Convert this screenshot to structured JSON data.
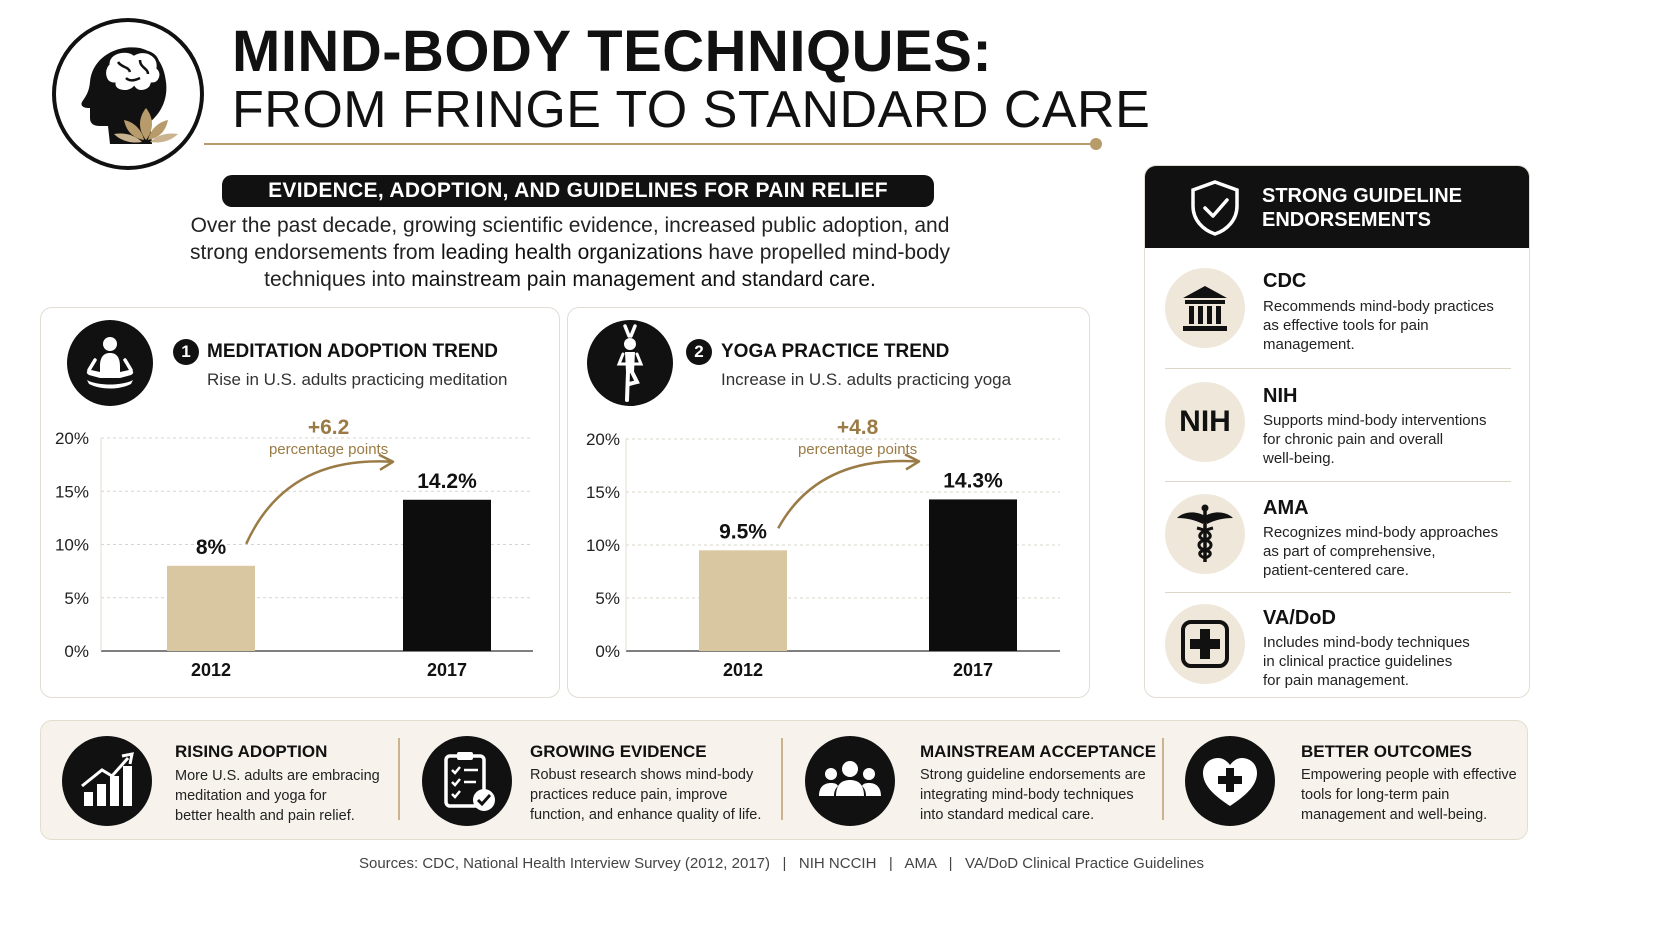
{
  "header": {
    "title_line1": "MIND-BODY TECHNIQUES:",
    "title_line2": "FROM FRINGE TO STANDARD CARE",
    "subtitle": "EVIDENCE, ADOPTION, AND GUIDELINES FOR PAIN RELIEF",
    "intro_part1": "Over the past decade, growing scientific evidence, increased public adoption, and strong endorsements from ",
    "intro_bold1": "leading health organizations",
    "intro_part2": " have propelled mind-body techniques into ",
    "intro_bold2": "mainstream pain management and standard care.",
    "accent_color": "#b79b6b",
    "logo_icon": "head-brain-lotus-icon"
  },
  "panels": [
    {
      "number": "1",
      "title": "MEDITATION ADOPTION TREND",
      "subtitle": "Rise in U.S. adults practicing meditation",
      "icon": "meditation-icon",
      "change_value": "+6.2",
      "change_unit": "percentage points"
    },
    {
      "number": "2",
      "title": "YOGA PRACTICE TREND",
      "subtitle": "Increase in U.S. adults practicing yoga",
      "icon": "yoga-pose-icon",
      "change_value": "+4.8",
      "change_unit": "percentage points"
    }
  ],
  "chart_data": [
    {
      "type": "bar",
      "title": "MEDITATION ADOPTION TREND",
      "categories": [
        "2012",
        "2017"
      ],
      "values": [
        8,
        14.2
      ],
      "value_labels": [
        "8%",
        "14.2%"
      ],
      "bar_colors": [
        "#d9c7a1",
        "#0d0d0d"
      ],
      "yticks": [
        "0%",
        "5%",
        "10%",
        "15%",
        "20%"
      ],
      "ylim": [
        0,
        20
      ],
      "grid": true,
      "annotation": "+6.2 percentage points"
    },
    {
      "type": "bar",
      "title": "YOGA PRACTICE TREND",
      "categories": [
        "2012",
        "2017"
      ],
      "values": [
        9.5,
        14.3
      ],
      "value_labels": [
        "9.5%",
        "14.3%"
      ],
      "bar_colors": [
        "#d9c7a1",
        "#0d0d0d"
      ],
      "yticks": [
        "0%",
        "5%",
        "10%",
        "15%",
        "20%"
      ],
      "ylim": [
        0,
        20
      ],
      "grid": true,
      "annotation": "+4.8 percentage points"
    }
  ],
  "sidebar": {
    "title_line1": "STRONG GUIDELINE",
    "title_line2": "ENDORSEMENTS",
    "header_icon": "shield-check-icon",
    "orgs": [
      {
        "name": "CDC",
        "icon": "government-building-icon",
        "desc_lines": [
          "Recommends mind-body practices",
          "as effective tools for pain",
          "management."
        ]
      },
      {
        "name": "NIH",
        "icon": "nih-logo",
        "logo_text": "NIH",
        "desc_lines": [
          "Supports mind-body interventions",
          "for chronic pain and overall",
          "well-being."
        ]
      },
      {
        "name": "AMA",
        "icon": "caduceus-icon",
        "desc_lines": [
          "Recognizes mind-body approaches",
          "as part of comprehensive,",
          "patient-centered care."
        ]
      },
      {
        "name": "VA/DoD",
        "icon": "medical-cross-icon",
        "desc_lines": [
          "Includes mind-body techniques",
          "in clinical practice guidelines",
          "for pain management."
        ]
      }
    ]
  },
  "highlights": [
    {
      "title": "RISING ADOPTION",
      "icon": "rising-bar-chart-icon",
      "desc_lines": [
        "More U.S. adults are embracing",
        "meditation and yoga for",
        "better health and pain relief."
      ]
    },
    {
      "title": "GROWING EVIDENCE",
      "icon": "clipboard-check-icon",
      "desc_lines": [
        "Robust research shows mind-body",
        "practices reduce pain, improve",
        "function, and enhance quality of life."
      ]
    },
    {
      "title": "MAINSTREAM ACCEPTANCE",
      "icon": "people-group-icon",
      "desc_lines": [
        "Strong guideline endorsements are",
        "integrating mind-body techniques",
        "into standard medical care."
      ]
    },
    {
      "title": "BETTER OUTCOMES",
      "icon": "heart-plus-icon",
      "desc_lines": [
        "Empowering people with effective",
        "tools for long-term pain",
        "management and well-being."
      ]
    }
  ],
  "sources": "Sources: CDC, National Health Interview Survey (2012, 2017)   |   NIH NCCIH   |   AMA   |   VA/DoD Clinical Practice Guidelines"
}
